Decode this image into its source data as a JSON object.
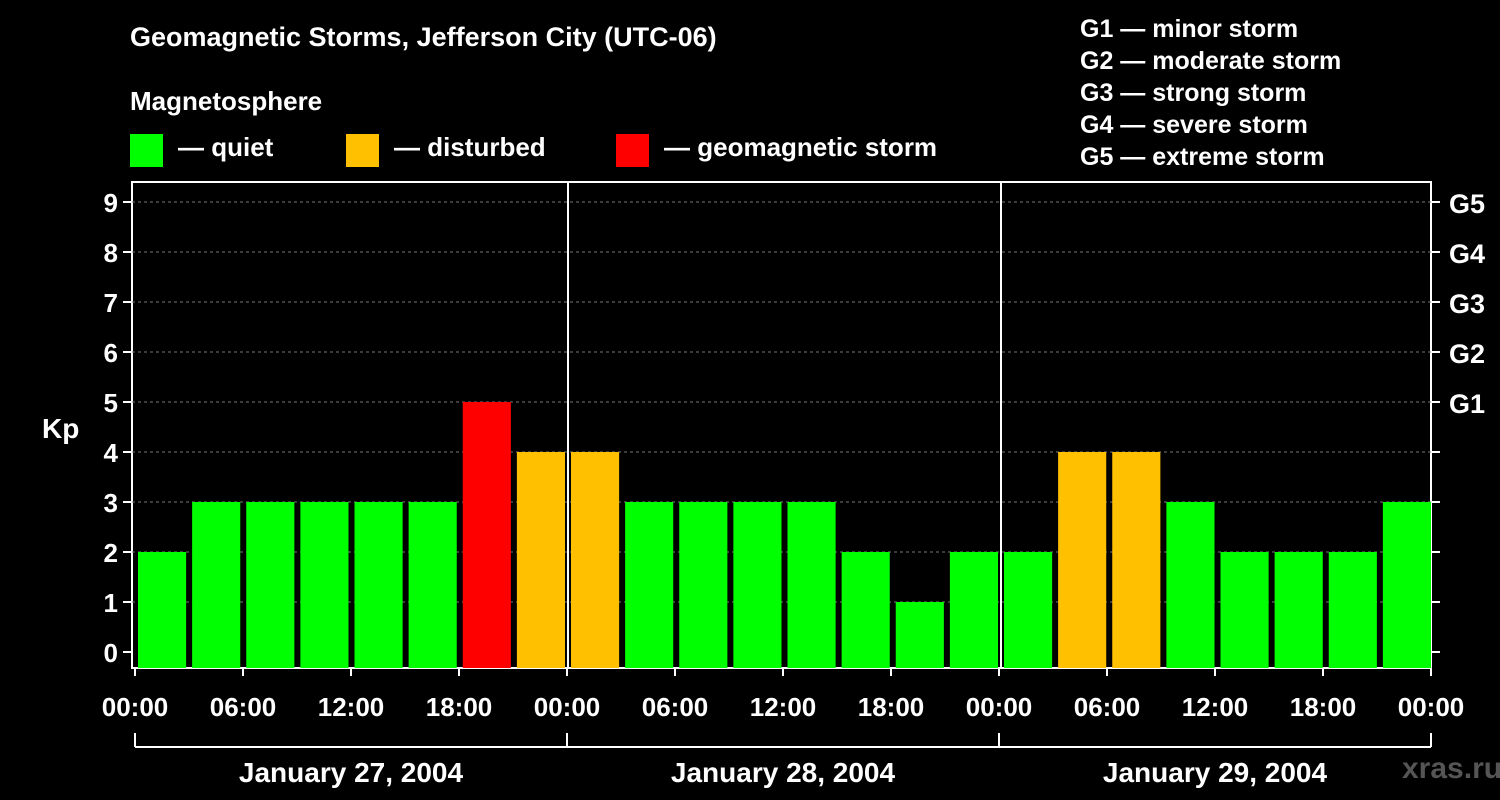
{
  "chart_data": {
    "type": "bar",
    "title": "Geomagnetic Storms, Jefferson City (UTC-06)",
    "legend_heading": "Magnetosphere",
    "legend": [
      {
        "label": "— quiet",
        "color": "#00ff00"
      },
      {
        "label": "— disturbed",
        "color": "#ffc000"
      },
      {
        "label": "— geomagnetic storm",
        "color": "#ff0000"
      }
    ],
    "g_scale": [
      "G1 — minor storm",
      "G2 — moderate storm",
      "G3 — strong storm",
      "G4 — severe storm",
      "G5 — extreme storm"
    ],
    "ylabel": "Kp",
    "ylim": [
      0,
      9
    ],
    "yticks": [
      0,
      1,
      2,
      3,
      4,
      5,
      6,
      7,
      8,
      9
    ],
    "right_ticks": [
      {
        "kp": 5,
        "label": "G1"
      },
      {
        "kp": 6,
        "label": "G2"
      },
      {
        "kp": 7,
        "label": "G3"
      },
      {
        "kp": 8,
        "label": "G4"
      },
      {
        "kp": 9,
        "label": "G5"
      }
    ],
    "x_tick_labels": [
      "00:00",
      "06:00",
      "12:00",
      "18:00",
      "00:00",
      "06:00",
      "12:00",
      "18:00",
      "00:00",
      "06:00",
      "12:00",
      "18:00",
      "00:00"
    ],
    "days": [
      "January 27, 2004",
      "January 28, 2004",
      "January 29, 2004"
    ],
    "interval_hours": 3,
    "values": [
      2,
      3,
      3,
      3,
      3,
      3,
      5,
      4,
      4,
      3,
      3,
      3,
      3,
      2,
      1,
      2,
      2,
      4,
      4,
      3,
      2,
      2,
      2,
      3
    ],
    "colors": {
      "quiet": "#00ff00",
      "disturbed": "#ffc000",
      "storm": "#ff0000"
    }
  },
  "watermark": "xras.ru"
}
